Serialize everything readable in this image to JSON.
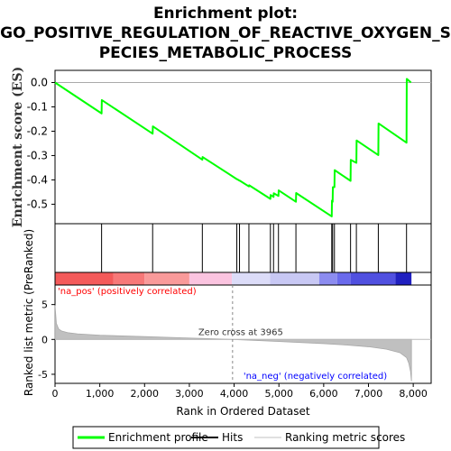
{
  "title_lines": [
    "Enrichment plot:",
    "GO_POSITIVE_REGULATION_OF_REACTIVE_OXYGEN_S",
    "PECIES_METABOLIC_PROCESS"
  ],
  "colors": {
    "enrichment": "#00ff00",
    "hits": "#000000",
    "metric_fill": "#c0c0c0",
    "pos_label": "#ff0000",
    "neg_label": "#0000ff",
    "zero_line": "#888888"
  },
  "chart_data": {
    "type": "line",
    "xlabel": "Rank in Ordered Dataset",
    "xlim": [
      0,
      8400
    ],
    "x_ticks": [
      0,
      1000,
      2000,
      3000,
      4000,
      5000,
      6000,
      7000,
      8000
    ],
    "es_panel": {
      "ylabel": "Enrichment score (ES)",
      "ylim": [
        -0.58,
        0.05
      ],
      "y_ticks": [
        0.0,
        -0.1,
        -0.2,
        -0.3,
        -0.4,
        -0.5
      ],
      "y_tick_labels": [
        "0.0",
        "-0.1",
        "-0.2",
        "-0.3",
        "-0.4",
        "-0.5"
      ],
      "series": [
        {
          "name": "Enrichment profile",
          "x": [
            0,
            1040,
            1045,
            2180,
            2185,
            3290,
            3295,
            4060,
            4065,
            4120,
            4125,
            4330,
            4335,
            4810,
            4815,
            4880,
            4885,
            4990,
            4995,
            5380,
            5385,
            6180,
            6185,
            6200,
            6205,
            6240,
            6245,
            6600,
            6605,
            6730,
            6735,
            7220,
            7225,
            7850,
            7855,
            7950
          ],
          "y": [
            0.0,
            -0.127,
            -0.072,
            -0.21,
            -0.18,
            -0.317,
            -0.306,
            -0.397,
            -0.397,
            -0.403,
            -0.403,
            -0.427,
            -0.422,
            -0.478,
            -0.462,
            -0.47,
            -0.455,
            -0.466,
            -0.443,
            -0.49,
            -0.454,
            -0.55,
            -0.485,
            -0.49,
            -0.43,
            -0.43,
            -0.36,
            -0.404,
            -0.318,
            -0.33,
            -0.238,
            -0.298,
            -0.168,
            -0.247,
            0.015,
            0.0
          ]
        }
      ],
      "hits": [
        1040,
        2180,
        3290,
        4060,
        4120,
        4330,
        4810,
        4880,
        4990,
        5380,
        6180,
        6200,
        6240,
        6600,
        6730,
        7220,
        7850
      ]
    },
    "metric_panel": {
      "ylabel": "Ranked list metric (PreRanked)",
      "ylim": [
        -6.3,
        7.8
      ],
      "y_ticks": [
        5,
        0,
        -5
      ],
      "y_tick_labels": [
        "5",
        "0",
        "-5"
      ],
      "series": [
        {
          "name": "Ranking metric scores",
          "x": [
            0,
            30,
            80,
            150,
            300,
            500,
            1000,
            2000,
            3000,
            3965,
            4500,
            5000,
            6000,
            6500,
            7000,
            7400,
            7700,
            7850,
            7900,
            7940,
            7960
          ],
          "y": [
            4.9,
            2.3,
            1.5,
            1.2,
            0.95,
            0.8,
            0.6,
            0.4,
            0.2,
            0.0,
            -0.15,
            -0.3,
            -0.6,
            -0.8,
            -1.05,
            -1.4,
            -1.9,
            -2.6,
            -3.4,
            -4.6,
            -6.0
          ]
        }
      ],
      "zero_cross_label": "Zero cross at 3965",
      "zero_cross_x": 3965,
      "pos_label": "'na_pos' (positively correlated)",
      "neg_label": "'na_neg' (negatively correlated)"
    },
    "color_bar": {
      "segments": [
        {
          "x0": 0,
          "x1": 1300,
          "color": "#f45a5a"
        },
        {
          "x0": 1300,
          "x1": 2000,
          "color": "#f77878"
        },
        {
          "x0": 2000,
          "x1": 3000,
          "color": "#f99a9a"
        },
        {
          "x0": 3000,
          "x1": 3950,
          "color": "#fbc4e0"
        },
        {
          "x0": 3950,
          "x1": 4800,
          "color": "#dcdcf8"
        },
        {
          "x0": 4800,
          "x1": 5900,
          "color": "#c8c8f4"
        },
        {
          "x0": 5900,
          "x1": 6300,
          "color": "#8c8cf0"
        },
        {
          "x0": 6300,
          "x1": 6600,
          "color": "#6a6aec"
        },
        {
          "x0": 6600,
          "x1": 7600,
          "color": "#5050e0"
        },
        {
          "x0": 7600,
          "x1": 7960,
          "color": "#2020c0"
        }
      ]
    },
    "legend": {
      "placement": "bottom",
      "items": [
        {
          "label": "Enrichment profile",
          "color": "#00ff00"
        },
        {
          "label": "Hits",
          "color": "#000000"
        },
        {
          "label": "Ranking metric scores",
          "color": "#c0c0c0"
        }
      ]
    }
  }
}
